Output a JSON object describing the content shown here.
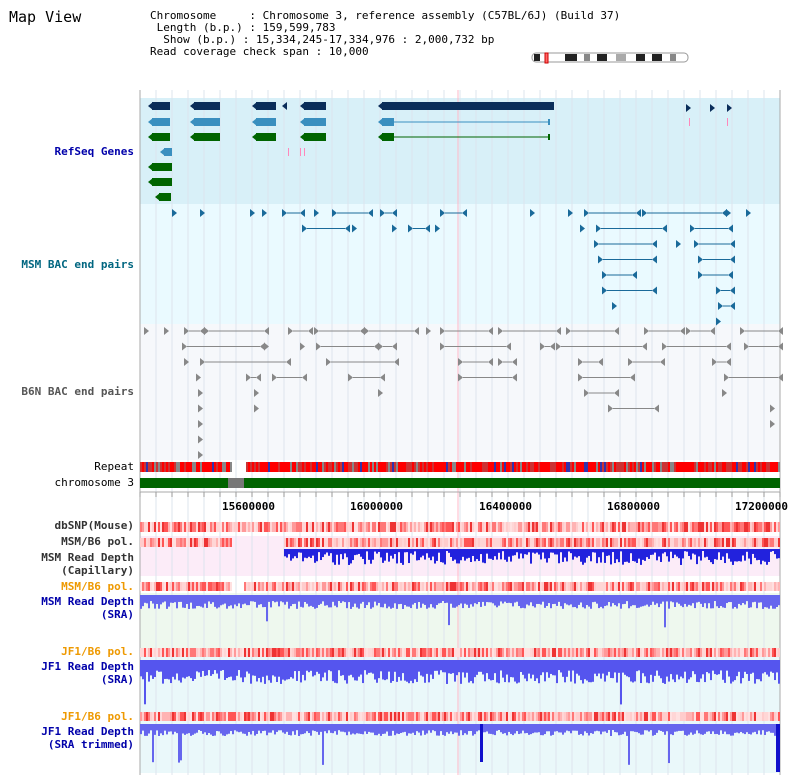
{
  "title": "Map View",
  "info": {
    "chromosome_key": "Chromosome",
    "chromosome_val": "Chromosome 3, reference assembly (C57BL/6J) (Build 37)",
    "length_key": "Length (b.p.)",
    "length_val": "159,599,783",
    "show_key": "Show (b.p.)",
    "show_val": "15,334,245-17,334,976 : 2,000,732 bp",
    "coverage_key": "Read coverage check span",
    "coverage_val": "10,000"
  },
  "tracks": {
    "refseq": "RefSeq Genes",
    "msm_bac": "MSM BAC end pairs",
    "b6n_bac": "B6N BAC end pairs",
    "repeat": "Repeat",
    "chromosome": "chromosome 3",
    "dbsnp": "dbSNP(Mouse)",
    "msm_b6_pol_1": "MSM/B6 pol.",
    "msm_depth_cap_1": "MSM Read Depth",
    "msm_depth_cap_2": "(Capillary)",
    "msm_b6_pol_2": "MSM/B6 pol.",
    "msm_depth_sra_1": "MSM Read Depth",
    "msm_depth_sra_2": "(SRA)",
    "jf1_b6_pol_1": "JF1/B6 pol.",
    "jf1_depth_1": "JF1 Read Depth",
    "jf1_depth_2": "(SRA)",
    "jf1_b6_pol_2": "JF1/B6 pol.",
    "jf1_trim_1": "JF1 Read Depth",
    "jf1_trim_2": "(SRA trimmed)"
  },
  "axis_ticks": [
    "15600000",
    "16000000",
    "16400000",
    "16800000",
    "17200000"
  ],
  "colors": {
    "refseq_bg": "#d8f0f8",
    "bac_bg": "#eafaff",
    "navy": "#0a2d5a",
    "steel": "#3a8fbf",
    "green": "#006400",
    "repeat_red": "#ff0000",
    "chrom_green": "#006400",
    "depth_blue": "#3333ee",
    "label_blue": "#0000aa",
    "label_orange": "#ee9900",
    "label_teal": "#006680"
  }
}
